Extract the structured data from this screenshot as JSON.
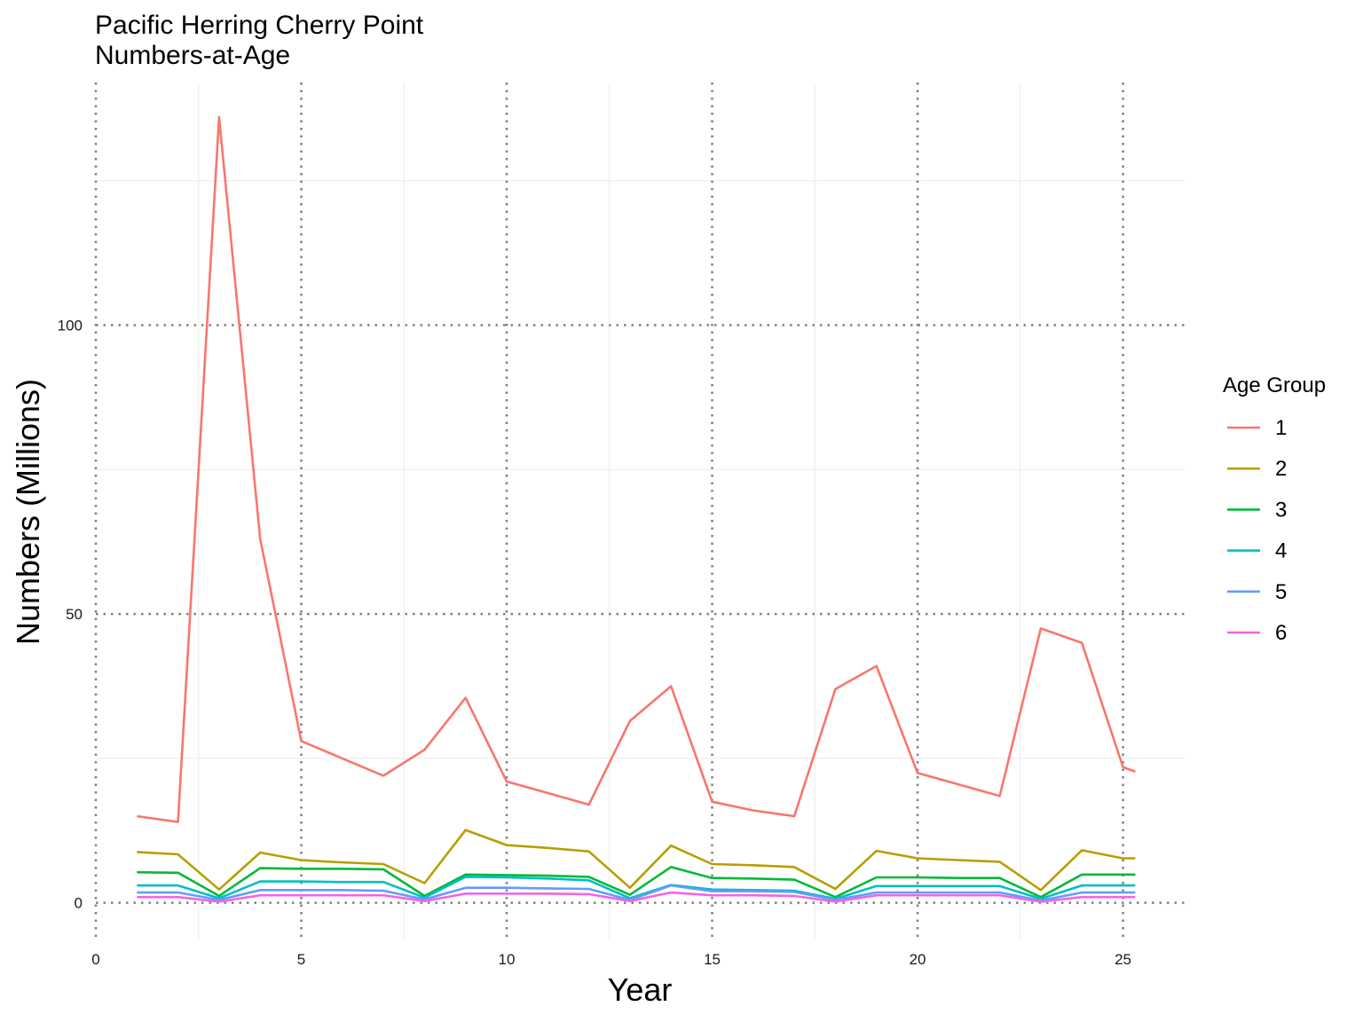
{
  "chart_data": {
    "type": "line",
    "title": "Pacific Herring Cherry Point",
    "subtitle": "Numbers-at-Age",
    "xlabel": "Year",
    "ylabel": "Numbers (Millions)",
    "xlim": [
      0,
      26.5
    ],
    "ylim": [
      -6.5,
      142
    ],
    "x_major_ticks": [
      0,
      5,
      10,
      15,
      20,
      25
    ],
    "x_minor_ticks": [
      2.5,
      7.5,
      12.5,
      17.5,
      22.5
    ],
    "y_major_ticks": [
      0,
      50,
      100
    ],
    "y_minor_ticks": [
      25,
      75,
      125
    ],
    "grid": true,
    "legend_title": "Age Group",
    "legend_position": "right",
    "x": [
      1,
      2,
      3,
      4,
      5,
      6,
      7,
      8,
      9,
      10,
      11,
      12,
      13,
      14,
      15,
      16,
      17,
      18,
      19,
      20,
      21,
      22,
      23,
      24,
      25,
      25.3
    ],
    "series": [
      {
        "name": "1",
        "color": "#F8766D",
        "values": [
          15,
          14,
          136,
          63,
          28,
          25,
          22,
          26.5,
          35.5,
          21,
          19,
          17,
          31.5,
          37.5,
          17.5,
          16,
          15,
          37,
          41,
          22.5,
          20.5,
          18.5,
          47.5,
          45,
          23.5,
          22.7
        ]
      },
      {
        "name": "2",
        "color": "#B79F00",
        "values": [
          8.8,
          8.4,
          2.3,
          8.7,
          7.4,
          7.0,
          6.7,
          3.4,
          12.6,
          10.0,
          9.5,
          8.9,
          2.6,
          9.9,
          6.7,
          6.5,
          6.2,
          2.4,
          9.0,
          7.7,
          7.4,
          7.1,
          2.2,
          9.1,
          7.7,
          7.7
        ]
      },
      {
        "name": "3",
        "color": "#00BA38",
        "values": [
          5.3,
          5.2,
          1.2,
          6.0,
          5.9,
          5.9,
          5.8,
          1.2,
          4.9,
          4.8,
          4.7,
          4.5,
          1.4,
          6.2,
          4.3,
          4.2,
          4.0,
          1.0,
          4.4,
          4.4,
          4.3,
          4.3,
          1.0,
          4.9,
          4.9,
          4.9
        ]
      },
      {
        "name": "4",
        "color": "#00BFC4",
        "values": [
          3.0,
          3.0,
          0.8,
          3.7,
          3.7,
          3.6,
          3.6,
          0.9,
          4.5,
          4.4,
          4.2,
          3.9,
          0.8,
          3.1,
          2.3,
          2.2,
          2.1,
          0.7,
          2.9,
          2.9,
          2.9,
          2.9,
          0.7,
          3.0,
          3.0,
          3.0
        ]
      },
      {
        "name": "5",
        "color": "#619CFF",
        "values": [
          1.8,
          1.8,
          0.5,
          2.2,
          2.2,
          2.2,
          2.1,
          0.6,
          2.6,
          2.6,
          2.5,
          2.4,
          0.5,
          3.0,
          2.0,
          2.0,
          1.9,
          0.5,
          1.8,
          1.8,
          1.8,
          1.8,
          0.4,
          1.8,
          1.8,
          1.8
        ]
      },
      {
        "name": "6",
        "color": "#F564E3",
        "values": [
          1.0,
          1.0,
          0.2,
          1.3,
          1.3,
          1.3,
          1.3,
          0.3,
          1.6,
          1.6,
          1.6,
          1.5,
          0.3,
          1.8,
          1.3,
          1.3,
          1.2,
          0.2,
          1.3,
          1.3,
          1.3,
          1.3,
          0.2,
          1.0,
          1.0,
          1.0
        ]
      }
    ]
  }
}
